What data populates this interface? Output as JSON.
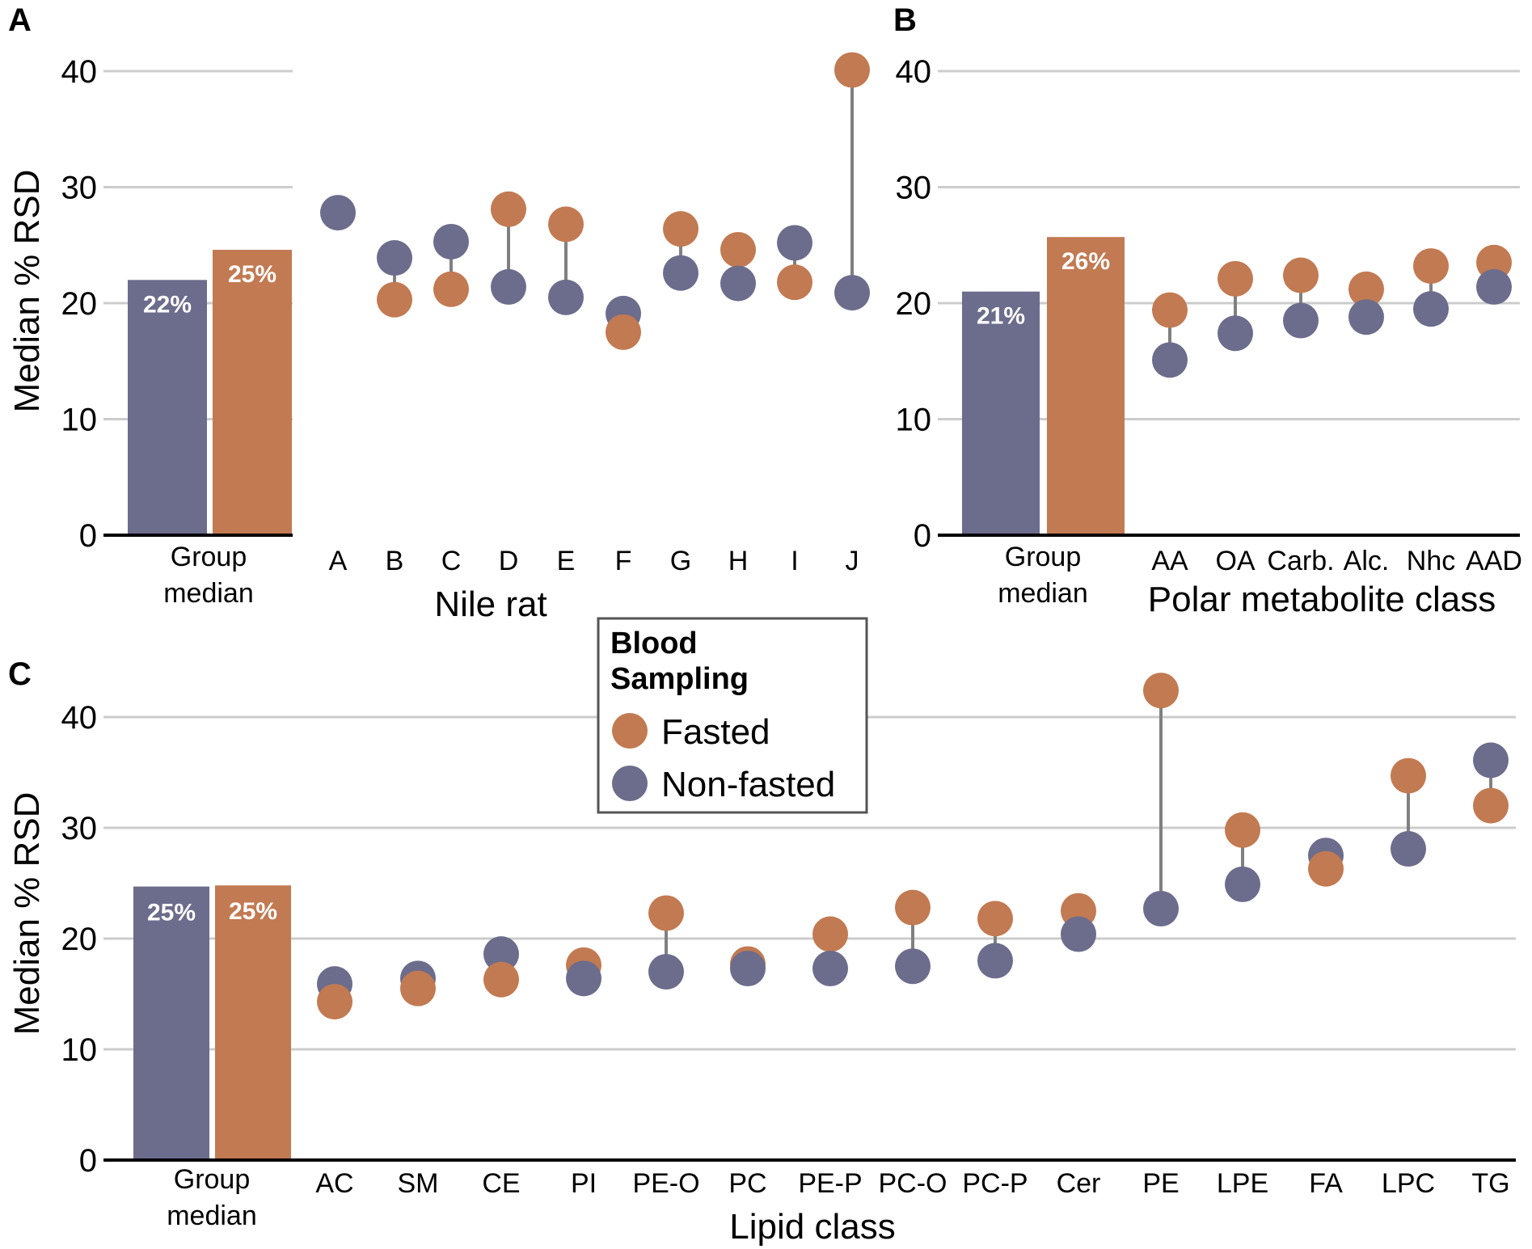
{
  "colors": {
    "fasted": "#C27A52",
    "nonfasted": "#6C6C8C",
    "connector": "#808080"
  },
  "legend": {
    "title_line1": "Blood",
    "title_line2": "Sampling",
    "fasted": "Fasted",
    "nonfasted": "Non-fasted"
  },
  "chart_data": [
    {
      "panel": "A",
      "type": "bar+dumbbell",
      "ylabel": "Median % RSD",
      "xlabel": "Nile rat",
      "ylim": [
        0,
        40
      ],
      "yticks": [
        0,
        10,
        20,
        30,
        40
      ],
      "group_label_line1": "Group",
      "group_label_line2": "median",
      "group_median": {
        "nonfasted": 22,
        "fasted": 24.6,
        "nonfasted_label": "22%",
        "fasted_label": "25%"
      },
      "categories": [
        "A",
        "B",
        "C",
        "D",
        "E",
        "F",
        "G",
        "H",
        "I",
        "J"
      ],
      "series": [
        {
          "name": "Fasted",
          "values": [
            null,
            20.3,
            21.2,
            28.1,
            26.8,
            17.5,
            26.4,
            24.6,
            21.8,
            40.1
          ]
        },
        {
          "name": "Non-fasted",
          "values": [
            27.8,
            23.9,
            25.3,
            21.4,
            20.5,
            19.1,
            22.6,
            21.7,
            25.2,
            20.9
          ]
        }
      ]
    },
    {
      "panel": "B",
      "type": "bar+dumbbell",
      "ylabel": "",
      "xlabel": "Polar metabolite class",
      "ylim": [
        0,
        40
      ],
      "yticks": [
        0,
        10,
        20,
        30,
        40
      ],
      "group_label_line1": "Group",
      "group_label_line2": "median",
      "group_median": {
        "nonfasted": 21,
        "fasted": 25.7,
        "nonfasted_label": "21%",
        "fasted_label": "26%"
      },
      "categories": [
        "AA",
        "OA",
        "Carb.",
        "Alc.",
        "Nhc",
        "AAD"
      ],
      "series": [
        {
          "name": "Fasted",
          "values": [
            19.4,
            22.1,
            22.4,
            21.2,
            23.2,
            23.5
          ]
        },
        {
          "name": "Non-fasted",
          "values": [
            15.1,
            17.4,
            18.5,
            18.8,
            19.5,
            21.4
          ]
        }
      ]
    },
    {
      "panel": "C",
      "type": "bar+dumbbell",
      "ylabel": "Median % RSD",
      "xlabel": "Lipid class",
      "ylim": [
        0,
        40
      ],
      "yticks": [
        0,
        10,
        20,
        30,
        40
      ],
      "group_label_line1": "Group",
      "group_label_line2": "median",
      "group_median": {
        "nonfasted": 24.7,
        "fasted": 24.8,
        "nonfasted_label": "25%",
        "fasted_label": "25%"
      },
      "categories": [
        "AC",
        "SM",
        "CE",
        "PI",
        "PE-O",
        "PC",
        "PE-P",
        "PC-O",
        "PC-P",
        "Cer",
        "PE",
        "LPE",
        "FA",
        "LPC",
        "TG"
      ],
      "series": [
        {
          "name": "Fasted",
          "values": [
            14.3,
            15.5,
            16.3,
            17.6,
            22.3,
            17.7,
            20.4,
            22.8,
            21.8,
            22.5,
            42.4,
            29.8,
            26.3,
            34.7,
            32.0
          ]
        },
        {
          "name": "Non-fasted",
          "values": [
            15.9,
            16.4,
            18.6,
            16.4,
            17.0,
            17.3,
            17.3,
            17.5,
            18.0,
            20.4,
            22.7,
            24.9,
            27.5,
            28.1,
            36.1
          ]
        }
      ]
    }
  ]
}
